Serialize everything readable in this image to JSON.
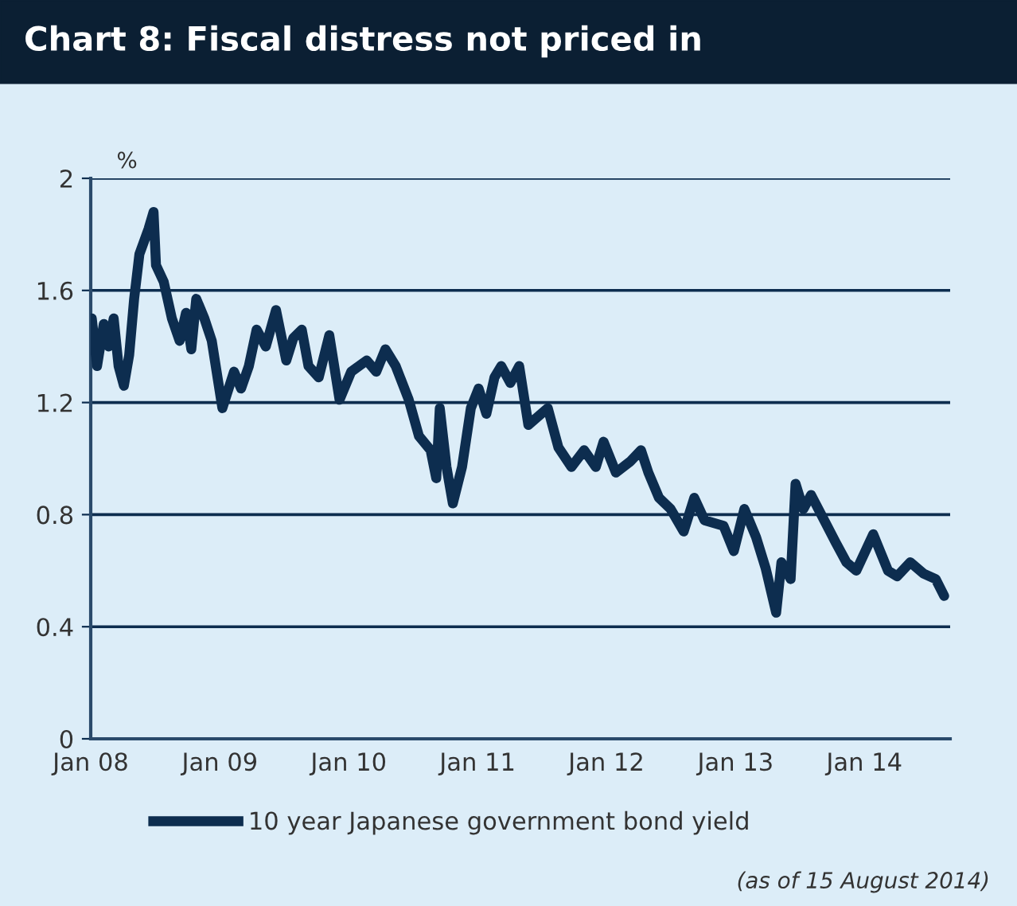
{
  "chart_data": {
    "type": "line",
    "title": "Chart 8: Fiscal distress not priced in",
    "ylabel": "%",
    "annotations": [
      "(as of 15 August 2014)"
    ],
    "series": [
      {
        "name": "10 year Japanese government bond yield",
        "color": "#0d2d4f",
        "x": [
          "2008-01-04",
          "2008-01-19",
          "2008-02-07",
          "2008-02-21",
          "2008-03-06",
          "2008-03-20",
          "2008-04-04",
          "2008-04-19",
          "2008-05-03",
          "2008-05-18",
          "2008-06-13",
          "2008-06-27",
          "2008-07-04",
          "2008-07-26",
          "2008-08-18",
          "2008-09-09",
          "2008-09-27",
          "2008-10-12",
          "2008-10-26",
          "2008-11-18",
          "2008-12-09",
          "2009-01-08",
          "2009-02-10",
          "2009-03-02",
          "2009-03-24",
          "2009-04-15",
          "2009-05-11",
          "2009-06-09",
          "2009-07-08",
          "2009-07-28",
          "2009-08-21",
          "2009-09-09",
          "2009-10-08",
          "2009-11-07",
          "2009-12-06",
          "2010-01-08",
          "2010-02-21",
          "2010-03-20",
          "2010-04-15",
          "2010-05-14",
          "2010-06-20",
          "2010-07-19",
          "2010-08-21",
          "2010-09-06",
          "2010-09-16",
          "2010-10-05",
          "2010-10-23",
          "2010-11-18",
          "2010-12-13",
          "2011-01-04",
          "2011-01-26",
          "2011-02-18",
          "2011-03-09",
          "2011-04-04",
          "2011-04-29",
          "2011-05-25",
          "2011-07-19",
          "2011-08-18",
          "2011-09-24",
          "2011-10-30",
          "2011-12-02",
          "2011-12-24",
          "2012-01-28",
          "2012-03-09",
          "2012-04-08",
          "2012-04-29",
          "2012-05-29",
          "2012-07-01",
          "2012-08-07",
          "2012-09-06",
          "2012-10-05",
          "2012-11-28",
          "2012-12-27",
          "2013-01-26",
          "2013-02-28",
          "2013-03-27",
          "2013-04-26",
          "2013-05-11",
          "2013-06-06",
          "2013-06-20",
          "2013-07-12",
          "2013-08-03",
          "2013-09-09",
          "2013-10-12",
          "2013-11-11",
          "2013-12-09",
          "2014-01-26",
          "2014-03-09",
          "2014-04-04",
          "2014-05-11",
          "2014-06-17",
          "2014-07-22",
          "2014-08-15"
        ],
        "values": [
          1.5,
          1.33,
          1.48,
          1.4,
          1.5,
          1.33,
          1.26,
          1.37,
          1.57,
          1.73,
          1.82,
          1.88,
          1.69,
          1.63,
          1.5,
          1.42,
          1.52,
          1.39,
          1.57,
          1.5,
          1.42,
          1.18,
          1.31,
          1.25,
          1.33,
          1.46,
          1.4,
          1.53,
          1.35,
          1.43,
          1.46,
          1.33,
          1.29,
          1.44,
          1.21,
          1.31,
          1.35,
          1.31,
          1.39,
          1.33,
          1.21,
          1.08,
          1.03,
          0.93,
          1.18,
          0.97,
          0.84,
          0.97,
          1.18,
          1.25,
          1.16,
          1.29,
          1.33,
          1.27,
          1.33,
          1.12,
          1.18,
          1.04,
          0.97,
          1.03,
          0.97,
          1.06,
          0.95,
          0.99,
          1.03,
          0.95,
          0.86,
          0.82,
          0.74,
          0.86,
          0.78,
          0.76,
          0.67,
          0.82,
          0.72,
          0.61,
          0.45,
          0.63,
          0.57,
          0.91,
          0.82,
          0.87,
          0.78,
          0.7,
          0.63,
          0.6,
          0.73,
          0.6,
          0.58,
          0.63,
          0.59,
          0.57,
          0.51
        ]
      }
    ],
    "xlim": [
      "2008-01-01",
      "2014-09-01"
    ],
    "xticks": [
      {
        "value": "2008-01-01",
        "label": "Jan 08"
      },
      {
        "value": "2009-01-01",
        "label": "Jan 09"
      },
      {
        "value": "2010-01-01",
        "label": "Jan 10"
      },
      {
        "value": "2011-01-01",
        "label": "Jan 11"
      },
      {
        "value": "2012-01-01",
        "label": "Jan 12"
      },
      {
        "value": "2013-01-01",
        "label": "Jan 13"
      },
      {
        "value": "2014-01-01",
        "label": "Jan 14"
      }
    ],
    "ylim": [
      0,
      2
    ],
    "yticks": [
      0,
      0.4,
      0.8,
      1.2,
      1.6,
      2
    ],
    "grid": "y",
    "legend": "bottom",
    "line_style": "solid"
  }
}
